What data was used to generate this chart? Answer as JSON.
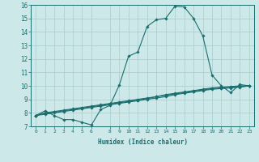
{
  "xlabel": "Humidex (Indice chaleur)",
  "bg_color": "#cde8e8",
  "line_color": "#1a6e6e",
  "grid_color": "#a8cccc",
  "xlim": [
    -0.5,
    23.5
  ],
  "ylim": [
    7,
    16
  ],
  "xticks": [
    0,
    1,
    2,
    3,
    4,
    5,
    6,
    8,
    9,
    10,
    11,
    12,
    13,
    14,
    15,
    16,
    17,
    18,
    19,
    20,
    21,
    22,
    23
  ],
  "yticks": [
    7,
    8,
    9,
    10,
    11,
    12,
    13,
    14,
    15,
    16
  ],
  "series": [
    [
      7.8,
      8.15,
      7.8,
      7.5,
      7.5,
      7.3,
      7.1,
      8.25,
      8.55,
      10.05,
      12.2,
      12.5,
      14.4,
      14.9,
      15.0,
      15.9,
      15.85,
      15.0,
      13.7,
      10.8,
      10.0,
      9.5,
      10.1,
      10.0
    ],
    [
      7.8,
      8.0,
      8.1,
      8.2,
      8.3,
      8.4,
      8.5,
      8.6,
      8.7,
      8.8,
      8.9,
      9.0,
      9.1,
      9.2,
      9.35,
      9.45,
      9.55,
      9.65,
      9.75,
      9.85,
      9.9,
      9.95,
      10.0,
      10.0
    ],
    [
      7.8,
      7.95,
      8.05,
      8.15,
      8.25,
      8.35,
      8.45,
      8.55,
      8.65,
      8.75,
      8.85,
      8.95,
      9.05,
      9.2,
      9.3,
      9.4,
      9.5,
      9.6,
      9.7,
      9.8,
      9.85,
      9.9,
      9.95,
      10.0
    ],
    [
      7.8,
      7.9,
      8.0,
      8.1,
      8.2,
      8.3,
      8.4,
      8.5,
      8.6,
      8.7,
      8.8,
      8.9,
      9.0,
      9.1,
      9.2,
      9.35,
      9.45,
      9.55,
      9.65,
      9.75,
      9.8,
      9.85,
      9.9,
      10.0
    ]
  ]
}
